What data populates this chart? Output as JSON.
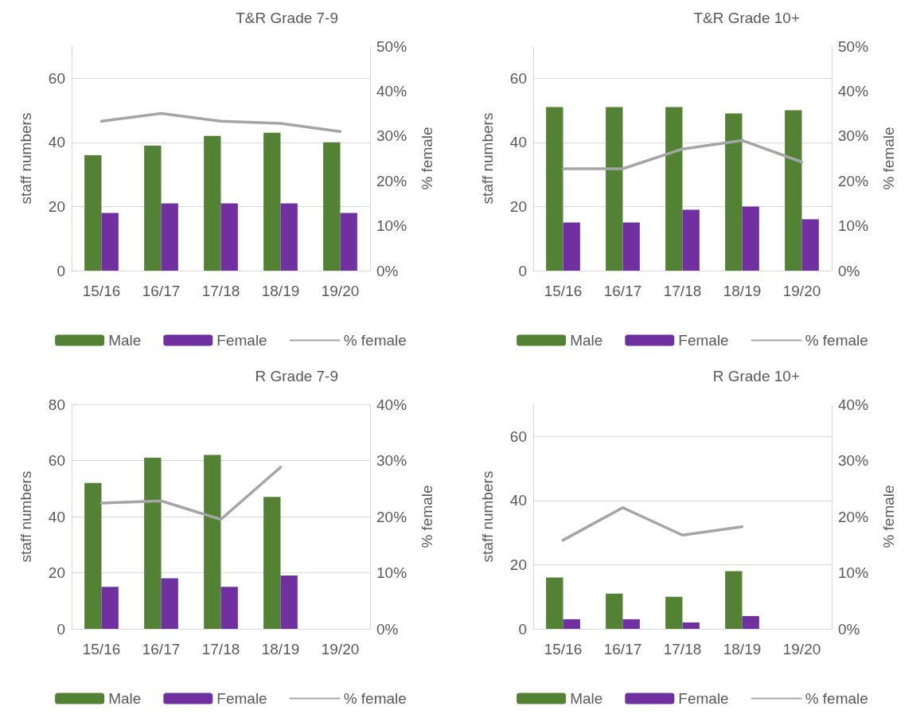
{
  "chart_data": [
    {
      "type": "bar",
      "title": "T&R Grade 7-9",
      "ylabel": "staff numbers",
      "y2label": "% female",
      "categories": [
        "15/16",
        "16/17",
        "17/18",
        "18/19",
        "19/20"
      ],
      "series": [
        {
          "name": "Male",
          "color": "#548235",
          "values": [
            36,
            39,
            42,
            43,
            40
          ]
        },
        {
          "name": "Female",
          "color": "#7030a0",
          "values": [
            18,
            21,
            21,
            21,
            18
          ]
        },
        {
          "name": "% female",
          "type": "line",
          "axis": "y2",
          "color": "#a5a5a5",
          "values": [
            33.3,
            35.0,
            33.3,
            32.8,
            31.0
          ]
        }
      ],
      "ylim": [
        0,
        70
      ],
      "yticks": [
        0,
        20,
        40,
        60
      ],
      "y2lim": [
        0,
        50
      ],
      "y2ticks": [
        {
          "value": 0,
          "label": "0%"
        },
        {
          "value": 10,
          "label": "10%"
        },
        {
          "value": 20,
          "label": "20%"
        },
        {
          "value": 30,
          "label": "30%"
        },
        {
          "value": 40,
          "label": "40%"
        },
        {
          "value": 50,
          "label": "50%"
        }
      ],
      "grid": "y",
      "legend": "bottom",
      "marker": "none"
    },
    {
      "type": "bar",
      "title": "T&R Grade 10+",
      "ylabel": "staff numbers",
      "y2label": "% female",
      "categories": [
        "15/16",
        "16/17",
        "17/18",
        "18/19",
        "19/20"
      ],
      "series": [
        {
          "name": "Male",
          "color": "#548235",
          "values": [
            51,
            51,
            51,
            49,
            50
          ]
        },
        {
          "name": "Female",
          "color": "#7030a0",
          "values": [
            15,
            15,
            19,
            20,
            16
          ]
        },
        {
          "name": "% female",
          "type": "line",
          "axis": "y2",
          "color": "#a5a5a5",
          "values": [
            22.7,
            22.7,
            27.1,
            29.0,
            24.2
          ]
        }
      ],
      "ylim": [
        0,
        70
      ],
      "yticks": [
        0,
        20,
        40,
        60
      ],
      "y2lim": [
        0,
        50
      ],
      "y2ticks": [
        {
          "value": 0,
          "label": "0%"
        },
        {
          "value": 10,
          "label": "10%"
        },
        {
          "value": 20,
          "label": "20%"
        },
        {
          "value": 30,
          "label": "30%"
        },
        {
          "value": 40,
          "label": "40%"
        },
        {
          "value": 50,
          "label": "50%"
        }
      ],
      "grid": "y",
      "legend": "bottom",
      "marker": "none"
    },
    {
      "type": "bar",
      "title": "R Grade 7-9",
      "ylabel": "staff numbers",
      "y2label": "% female",
      "categories": [
        "15/16",
        "16/17",
        "17/18",
        "18/19",
        "19/20"
      ],
      "series": [
        {
          "name": "Male",
          "color": "#548235",
          "values": [
            52,
            61,
            62,
            47,
            null
          ]
        },
        {
          "name": "Female",
          "color": "#7030a0",
          "values": [
            15,
            18,
            15,
            19,
            null
          ]
        },
        {
          "name": "% female",
          "type": "line",
          "axis": "y2",
          "color": "#a5a5a5",
          "values": [
            22.4,
            22.8,
            19.5,
            28.8,
            null
          ]
        }
      ],
      "ylim": [
        0,
        80
      ],
      "yticks": [
        0,
        20,
        40,
        60,
        80
      ],
      "y2lim": [
        0,
        40
      ],
      "y2ticks": [
        {
          "value": 0,
          "label": "0%"
        },
        {
          "value": 10,
          "label": "10%"
        },
        {
          "value": 20,
          "label": "20%"
        },
        {
          "value": 30,
          "label": "30%"
        },
        {
          "value": 40,
          "label": "40%"
        }
      ],
      "grid": "y",
      "legend": "bottom",
      "marker": "none"
    },
    {
      "type": "bar",
      "title": "R Grade 10+",
      "ylabel": "staff numbers",
      "y2label": "% female",
      "categories": [
        "15/16",
        "16/17",
        "17/18",
        "18/19",
        "19/20"
      ],
      "series": [
        {
          "name": "Male",
          "color": "#548235",
          "values": [
            16,
            11,
            10,
            18,
            null
          ]
        },
        {
          "name": "Female",
          "color": "#7030a0",
          "values": [
            3,
            3,
            2,
            4,
            null
          ]
        },
        {
          "name": "% female",
          "type": "line",
          "axis": "y2",
          "color": "#a5a5a5",
          "values": [
            15.8,
            21.6,
            16.7,
            18.2,
            null
          ]
        }
      ],
      "ylim": [
        0,
        70
      ],
      "yticks": [
        0,
        20,
        40,
        60
      ],
      "y2lim": [
        0,
        40
      ],
      "y2ticks": [
        {
          "value": 0,
          "label": "0%"
        },
        {
          "value": 10,
          "label": "10%"
        },
        {
          "value": 20,
          "label": "20%"
        },
        {
          "value": 30,
          "label": "30%"
        },
        {
          "value": 40,
          "label": "40%"
        }
      ],
      "grid": "y",
      "legend": "bottom",
      "marker": "none"
    }
  ]
}
